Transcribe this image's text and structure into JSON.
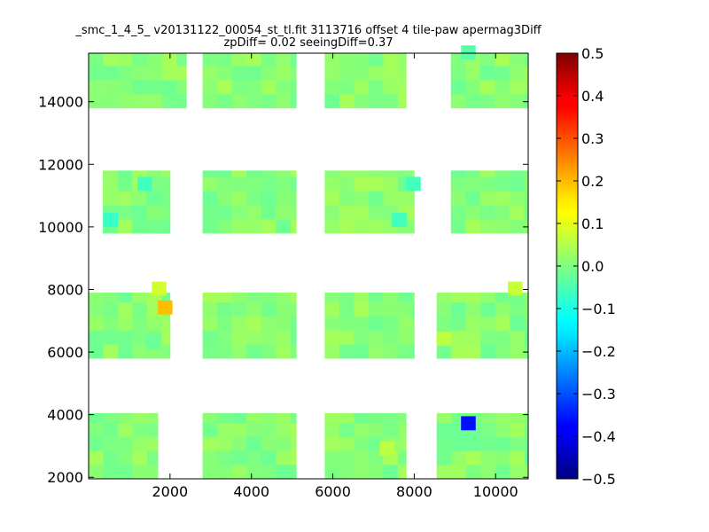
{
  "chart_data": {
    "type": "heatmap",
    "title_lines": [
      "_smc_1_4_5_ v20131122_00054_st_tl.fit 3113716 offset 4 tile-paw apermag3Diff",
      "zpDiff= 0.02 seeingDiff=0.37"
    ],
    "xlabel": "",
    "ylabel": "",
    "xlim": [
      0,
      10800
    ],
    "ylim": [
      1950,
      15550
    ],
    "xticks": [
      2000,
      4000,
      6000,
      8000,
      10000
    ],
    "yticks": [
      2000,
      4000,
      6000,
      8000,
      10000,
      12000,
      14000
    ],
    "colorbar": {
      "colormap": "jet",
      "range": [
        -0.5,
        0.5
      ],
      "ticks": [
        "0.5",
        "0.4",
        "0.3",
        "0.2",
        "0.1",
        "0.0",
        "−0.1",
        "−0.2",
        "−0.3",
        "−0.4",
        "−0.5"
      ]
    },
    "cell_width": 360,
    "cell_height": 450,
    "blocks": [
      {
        "x": [
          0,
          2400
        ],
        "y": [
          13800,
          15550
        ]
      },
      {
        "x": [
          2800,
          5100
        ],
        "y": [
          13800,
          15550
        ]
      },
      {
        "x": [
          5800,
          7800
        ],
        "y": [
          13800,
          15550
        ]
      },
      {
        "x": [
          8900,
          10800
        ],
        "y": [
          13800,
          15550
        ]
      },
      {
        "x": [
          350,
          2000
        ],
        "y": [
          9800,
          11800
        ]
      },
      {
        "x": [
          2800,
          5100
        ],
        "y": [
          9800,
          11800
        ]
      },
      {
        "x": [
          5800,
          8000
        ],
        "y": [
          9800,
          11800
        ]
      },
      {
        "x": [
          8900,
          10800
        ],
        "y": [
          9800,
          11800
        ]
      },
      {
        "x": [
          0,
          2000
        ],
        "y": [
          5800,
          7900
        ]
      },
      {
        "x": [
          2800,
          5100
        ],
        "y": [
          5800,
          7900
        ]
      },
      {
        "x": [
          5800,
          8000
        ],
        "y": [
          5800,
          7900
        ]
      },
      {
        "x": [
          8550,
          10800
        ],
        "y": [
          5800,
          7900
        ]
      },
      {
        "x": [
          0,
          1700
        ],
        "y": [
          1950,
          4050
        ]
      },
      {
        "x": [
          2800,
          5100
        ],
        "y": [
          1950,
          4050
        ]
      },
      {
        "x": [
          5800,
          7800
        ],
        "y": [
          1950,
          4050
        ]
      },
      {
        "x": [
          8550,
          10800
        ],
        "y": [
          1950,
          4050
        ]
      }
    ],
    "cells": [
      {
        "x": 1700,
        "y": 7200,
        "value": 0.19
      },
      {
        "x": 1550,
        "y": 7800,
        "value": 0.08
      },
      {
        "x": 9150,
        "y": 3500,
        "value": -0.36
      },
      {
        "x": 1200,
        "y": 11150,
        "value": -0.06
      },
      {
        "x": 360,
        "y": 10000,
        "value": -0.07
      },
      {
        "x": 7450,
        "y": 10000,
        "value": -0.06
      },
      {
        "x": 7800,
        "y": 11150,
        "value": -0.06
      },
      {
        "x": 9150,
        "y": 15350,
        "value": -0.04
      },
      {
        "x": 8550,
        "y": 6200,
        "value": 0.06
      },
      {
        "x": 10300,
        "y": 7800,
        "value": 0.07
      },
      {
        "x": 7150,
        "y": 2700,
        "value": 0.06
      },
      {
        "x": 1400,
        "y": 6100,
        "value": -0.02
      }
    ],
    "background_value": 0.01
  }
}
